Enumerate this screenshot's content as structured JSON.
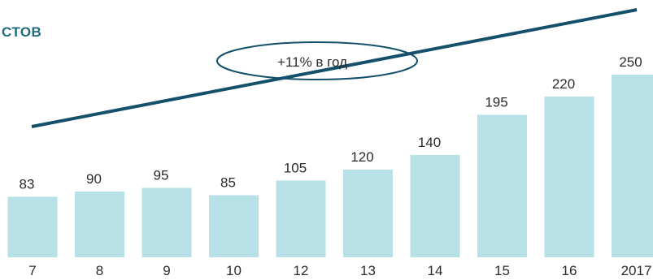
{
  "chart_data": {
    "type": "bar",
    "title": "СТОВ",
    "categories": [
      "7",
      "8",
      "9",
      "10",
      "12",
      "13",
      "14",
      "15",
      "16",
      "2017"
    ],
    "values": [
      83,
      90,
      95,
      85,
      105,
      120,
      140,
      195,
      220,
      250
    ],
    "annotation": "+11% в год",
    "trend_line": true,
    "grid": false,
    "legend": "none",
    "colors": {
      "bar": "#b7e1e6",
      "trend": "#14506b",
      "title": "#1f6b7a"
    }
  }
}
